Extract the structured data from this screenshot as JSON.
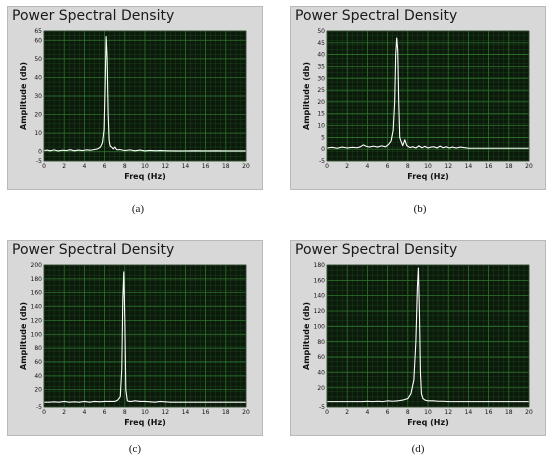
{
  "chart_data": [
    {
      "id": "a",
      "type": "line",
      "title": "Power Spectral Density",
      "xlabel": "Freq (Hz)",
      "ylabel": "Amplitude (db)",
      "caption": "(a)",
      "xlim": [
        0,
        20
      ],
      "ylim": [
        -5,
        65
      ],
      "xticks": [
        0,
        2,
        4,
        6,
        8,
        10,
        12,
        14,
        16,
        18,
        20
      ],
      "yticks": [
        -5,
        0,
        10,
        20,
        30,
        40,
        50,
        60,
        65
      ],
      "grid": true,
      "line_color": "#ffffff",
      "background": "#0c1a0c",
      "grid_color": "#2f7a2f",
      "series": [
        {
          "x": [
            0,
            0.3,
            0.6,
            1,
            1.4,
            1.8,
            2.2,
            2.6,
            3,
            3.4,
            3.8,
            4.2,
            4.6,
            5,
            5.3,
            5.6,
            5.8,
            5.95,
            6.05,
            6.15,
            6.25,
            6.35,
            6.45,
            6.55,
            6.7,
            6.85,
            7,
            7.2,
            7.5,
            8,
            8.5,
            9,
            9.5,
            10,
            10.5,
            11,
            11.5,
            12,
            13,
            14,
            15,
            16,
            17,
            18,
            19,
            20
          ],
          "y": [
            0.6,
            0.9,
            0.5,
            1.0,
            0.4,
            0.8,
            0.6,
            1.1,
            0.5,
            0.9,
            0.6,
            1.0,
            0.8,
            1.2,
            1.5,
            2.5,
            5,
            12,
            35,
            62,
            50,
            20,
            6,
            3,
            2.5,
            1.5,
            2.5,
            1.0,
            1.2,
            0.6,
            1.0,
            0.5,
            0.9,
            0.4,
            0.7,
            0.5,
            0.6,
            0.5,
            0.4,
            0.4,
            0.5,
            0.4,
            0.5,
            0.4,
            0.4,
            0.4
          ]
        }
      ]
    },
    {
      "id": "b",
      "type": "line",
      "title": "Power Spectral Density",
      "xlabel": "Freq (Hz)",
      "ylabel": "Amplitude (db)",
      "caption": "(b)",
      "xlim": [
        0,
        20
      ],
      "ylim": [
        -5,
        50
      ],
      "xticks": [
        0,
        2,
        4,
        6,
        8,
        10,
        12,
        14,
        16,
        18,
        20
      ],
      "yticks": [
        -5,
        0,
        5,
        10,
        15,
        20,
        25,
        30,
        35,
        40,
        45,
        50
      ],
      "grid": true,
      "line_color": "#ffffff",
      "background": "#0c1a0c",
      "grid_color": "#2f7a2f",
      "series": [
        {
          "x": [
            0,
            0.5,
            1,
            1.5,
            2,
            2.5,
            3,
            3.3,
            3.6,
            3.9,
            4.2,
            4.6,
            5,
            5.4,
            5.8,
            6.1,
            6.35,
            6.55,
            6.7,
            6.8,
            6.9,
            7.0,
            7.1,
            7.2,
            7.35,
            7.5,
            7.7,
            7.9,
            8.2,
            8.5,
            8.8,
            9.1,
            9.4,
            9.7,
            10,
            10.3,
            10.6,
            10.9,
            11.2,
            11.5,
            11.8,
            12.1,
            12.4,
            12.8,
            13.2,
            14,
            15,
            16,
            17,
            18,
            19,
            20
          ],
          "y": [
            0.5,
            0.8,
            0.4,
            0.9,
            0.5,
            0.8,
            0.6,
            1.0,
            1.8,
            1.2,
            0.9,
            1.3,
            0.9,
            1.4,
            1.0,
            2.0,
            3.5,
            8,
            20,
            40,
            47,
            42,
            20,
            5,
            3,
            1.5,
            4,
            1.5,
            0.7,
            1.0,
            0.5,
            1.4,
            0.6,
            1.2,
            0.5,
            0.9,
            1.0,
            0.5,
            1.3,
            0.6,
            1.0,
            0.5,
            0.9,
            0.5,
            0.9,
            0.4,
            0.4,
            0.4,
            0.4,
            0.4,
            0.4,
            0.4
          ]
        }
      ]
    },
    {
      "id": "c",
      "type": "line",
      "title": "Power Spectral Density",
      "xlabel": "Freq (Hz)",
      "ylabel": "Amplitude (db)",
      "caption": "(c)",
      "xlim": [
        0,
        20
      ],
      "ylim": [
        -5,
        200
      ],
      "xticks": [
        0,
        2,
        4,
        6,
        8,
        10,
        12,
        14,
        16,
        18,
        20
      ],
      "yticks": [
        -5,
        20,
        40,
        60,
        80,
        100,
        120,
        140,
        160,
        180,
        200
      ],
      "grid": true,
      "line_color": "#ffffff",
      "background": "#0c1a0c",
      "grid_color": "#2f7a2f",
      "series": [
        {
          "x": [
            0,
            0.5,
            1,
            1.5,
            2,
            2.5,
            3,
            3.5,
            4,
            4.5,
            5,
            5.5,
            6,
            6.5,
            7,
            7.3,
            7.55,
            7.7,
            7.8,
            7.9,
            8.0,
            8.1,
            8.25,
            8.45,
            8.7,
            9,
            9.5,
            10,
            10.5,
            11,
            11.5,
            12,
            12.5,
            13,
            14,
            15,
            16,
            17,
            18,
            19,
            20
          ],
          "y": [
            2,
            2,
            2.5,
            2,
            3,
            2,
            2.5,
            2,
            3,
            2,
            3,
            2.5,
            3,
            3,
            3,
            5,
            10,
            50,
            150,
            190,
            120,
            20,
            4,
            3,
            3,
            4,
            3,
            3,
            2.5,
            2,
            3,
            2.5,
            2,
            2,
            2,
            2,
            2,
            2,
            2,
            2,
            2
          ]
        }
      ]
    },
    {
      "id": "d",
      "type": "line",
      "title": "Power Spectral Density",
      "xlabel": "Freq (Hz)",
      "ylabel": "Amplitude (db)",
      "caption": "(d)",
      "xlim": [
        0,
        20
      ],
      "ylim": [
        -5,
        180
      ],
      "xticks": [
        0,
        2,
        4,
        6,
        8,
        10,
        12,
        14,
        16,
        18,
        20
      ],
      "yticks": [
        -5,
        20,
        40,
        60,
        80,
        100,
        120,
        140,
        160,
        180
      ],
      "grid": true,
      "line_color": "#ffffff",
      "background": "#0c1a0c",
      "grid_color": "#2f7a2f",
      "series": [
        {
          "x": [
            0,
            0.5,
            1,
            1.5,
            2,
            2.5,
            3,
            3.5,
            4,
            4.5,
            5,
            5.5,
            6,
            6.5,
            7,
            7.5,
            8,
            8.3,
            8.6,
            8.8,
            8.95,
            9.05,
            9.15,
            9.25,
            9.35,
            9.5,
            9.7,
            10,
            10.5,
            11,
            11.5,
            12,
            13,
            14,
            15,
            16,
            17,
            18,
            19,
            20
          ],
          "y": [
            2,
            2,
            2,
            2,
            2,
            2,
            2,
            2,
            2.5,
            2,
            2.5,
            2,
            3,
            2.5,
            3,
            4,
            6,
            12,
            30,
            80,
            150,
            176,
            120,
            40,
            12,
            6,
            4,
            3,
            3,
            2.5,
            2.5,
            2,
            2,
            2,
            2,
            2,
            2,
            2,
            2,
            2
          ]
        }
      ]
    }
  ]
}
